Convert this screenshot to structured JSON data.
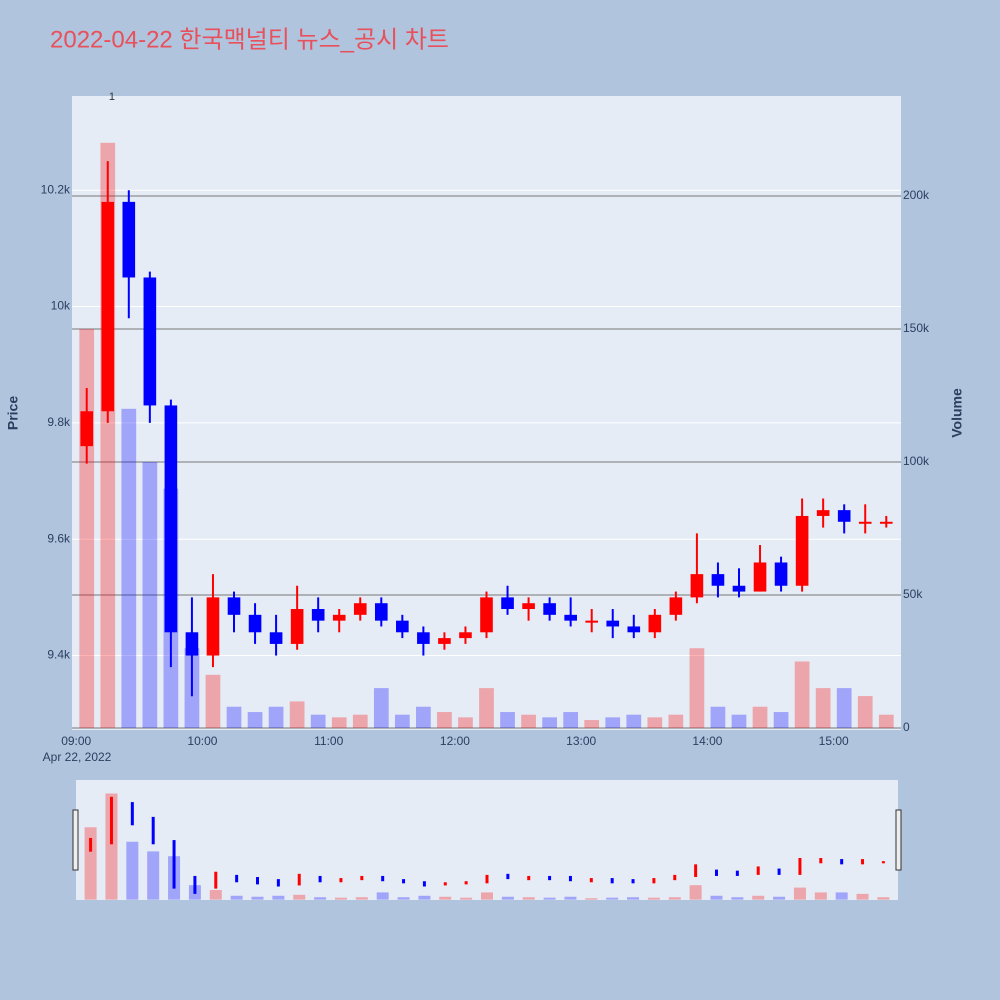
{
  "chart_data": {
    "type": "candlestick",
    "title": "2022-04-22 한국맥널티 뉴스_공시 차트",
    "yaxis_title": "Price",
    "y2axis_title": "Volume",
    "x_date_label": "Apr 22, 2022",
    "increasing_color": "#ff0000",
    "decreasing_color": "#0000ff",
    "grid": true,
    "x": [
      "09:00",
      "09:10",
      "09:20",
      "09:30",
      "09:40",
      "09:50",
      "10:00",
      "10:10",
      "10:20",
      "10:30",
      "10:40",
      "10:50",
      "11:00",
      "11:10",
      "11:20",
      "11:30",
      "11:40",
      "11:50",
      "12:00",
      "12:10",
      "12:20",
      "12:30",
      "12:40",
      "12:50",
      "13:00",
      "13:10",
      "13:20",
      "13:30",
      "13:40",
      "13:50",
      "14:00",
      "14:10",
      "14:20",
      "14:30",
      "14:40",
      "14:50",
      "15:00",
      "15:10",
      "15:20"
    ],
    "open": [
      9760,
      9820,
      10180,
      10050,
      9830,
      9440,
      9400,
      9500,
      9470,
      9440,
      9420,
      9480,
      9460,
      9470,
      9490,
      9460,
      9440,
      9420,
      9430,
      9440,
      9500,
      9480,
      9490,
      9470,
      9460,
      9460,
      9450,
      9440,
      9470,
      9500,
      9540,
      9520,
      9510,
      9560,
      9520,
      9640,
      9650,
      9630,
      9630
    ],
    "high": [
      9860,
      10250,
      10200,
      10060,
      9840,
      9500,
      9540,
      9510,
      9490,
      9470,
      9520,
      9500,
      9480,
      9500,
      9500,
      9470,
      9450,
      9440,
      9450,
      9510,
      9520,
      9500,
      9500,
      9500,
      9480,
      9480,
      9470,
      9480,
      9510,
      9610,
      9560,
      9550,
      9590,
      9570,
      9670,
      9670,
      9660,
      9660,
      9640
    ],
    "low": [
      9730,
      9800,
      9980,
      9800,
      9380,
      9330,
      9380,
      9440,
      9420,
      9400,
      9410,
      9440,
      9440,
      9460,
      9450,
      9430,
      9400,
      9410,
      9420,
      9430,
      9470,
      9460,
      9460,
      9450,
      9440,
      9430,
      9430,
      9430,
      9460,
      9490,
      9500,
      9500,
      9510,
      9510,
      9510,
      9620,
      9610,
      9610,
      9620
    ],
    "close": [
      9820,
      10180,
      10050,
      9830,
      9440,
      9400,
      9500,
      9470,
      9440,
      9420,
      9480,
      9460,
      9470,
      9490,
      9460,
      9440,
      9420,
      9430,
      9440,
      9500,
      9480,
      9490,
      9470,
      9460,
      9460,
      9450,
      9440,
      9470,
      9500,
      9540,
      9520,
      9510,
      9560,
      9520,
      9640,
      9650,
      9630,
      9630,
      9630
    ],
    "volume": [
      150000,
      220000,
      120000,
      100000,
      90000,
      30000,
      20000,
      8000,
      6000,
      8000,
      10000,
      5000,
      4000,
      5000,
      15000,
      5000,
      8000,
      6000,
      4000,
      15000,
      6000,
      5000,
      4000,
      6000,
      3000,
      4000,
      5000,
      4000,
      5000,
      30000,
      8000,
      5000,
      8000,
      6000,
      25000,
      15000,
      15000,
      12000,
      5000
    ],
    "annotations": [
      {
        "x": "09:17",
        "text": "1"
      }
    ],
    "xlim": [
      "08:58",
      "15:32"
    ],
    "xticks": [
      "09:00",
      "10:00",
      "11:00",
      "12:00",
      "13:00",
      "14:00",
      "15:00"
    ],
    "ylim": [
      9272,
      10362
    ],
    "yticks": [
      {
        "value": 9400,
        "label": "9.4k"
      },
      {
        "value": 9600,
        "label": "9.6k"
      },
      {
        "value": 9800,
        "label": "9.8k"
      },
      {
        "value": 10000,
        "label": "10k"
      },
      {
        "value": 10200,
        "label": "10.2k"
      }
    ],
    "y2lim": [
      -750,
      237600
    ],
    "y2ticks": [
      0,
      {
        "value": 50000,
        "label": "50k"
      },
      {
        "value": 100000,
        "label": "100k"
      },
      {
        "value": 150000,
        "label": "150k"
      },
      {
        "value": 200000,
        "label": "200k"
      }
    ]
  }
}
